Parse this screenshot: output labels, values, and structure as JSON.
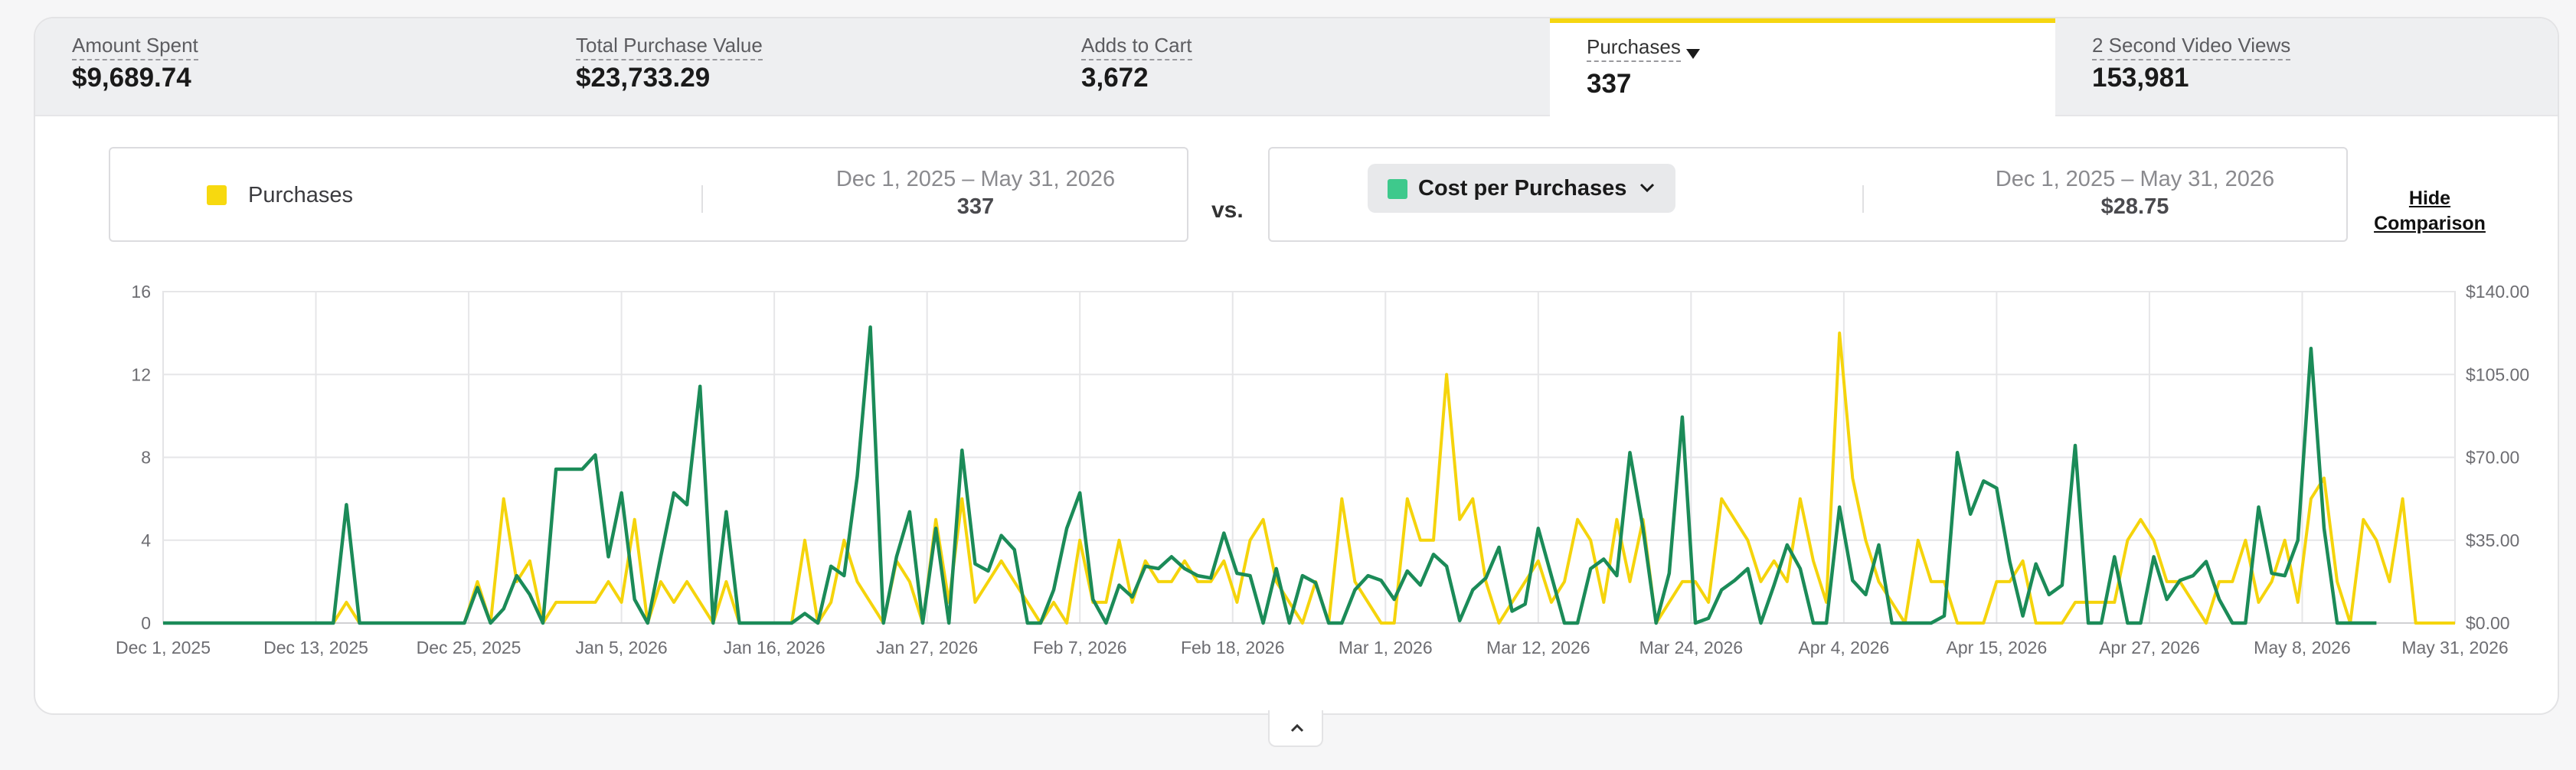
{
  "metrics": [
    {
      "label": "Amount Spent",
      "value": "$9,689.74"
    },
    {
      "label": "Total Purchase Value",
      "value": "$23,733.29"
    },
    {
      "label": "Adds to Cart",
      "value": "3,672"
    },
    {
      "label": "Purchases",
      "value": "337"
    },
    {
      "label": "2 Second Video Views",
      "value": "153,981"
    }
  ],
  "comparison": {
    "left": {
      "metric": "Purchases",
      "range": "Dec 1, 2025 – May 31, 2026",
      "value": "337",
      "color": "#f7d90f"
    },
    "vs_label": "vs.",
    "right": {
      "metric": "Cost per Purchases",
      "range": "Dec 1, 2025 – May 31, 2026",
      "value": "$28.75",
      "color": "#3ec98c"
    },
    "hide_label_1": "Hide",
    "hide_label_2": "Comparison"
  },
  "chart_data": {
    "type": "line",
    "x_range": [
      "Dec 1, 2025",
      "May 31, 2026"
    ],
    "x_tick_labels": [
      "Dec 1, 2025",
      "Dec 13, 2025",
      "Dec 25, 2025",
      "Jan 5, 2026",
      "Jan 16, 2026",
      "Jan 27, 2026",
      "Feb 7, 2026",
      "Feb 18, 2026",
      "Mar 1, 2026",
      "Mar 12, 2026",
      "Mar 24, 2026",
      "Apr 4, 2026",
      "Apr 15, 2026",
      "Apr 27, 2026",
      "May 8, 2026",
      "May 31, 2026"
    ],
    "y_left": {
      "ticks": [
        "0",
        "4",
        "8",
        "12",
        "16"
      ],
      "range": [
        0,
        16
      ]
    },
    "y_right": {
      "ticks": [
        "$0.00",
        "$35.00",
        "$70.00",
        "$105.00",
        "$140.00"
      ],
      "range": [
        0,
        140
      ]
    },
    "grid": true,
    "series": [
      {
        "name": "Purchases",
        "axis": "left",
        "color": "#f5d40c",
        "values": [
          0,
          0,
          0,
          0,
          0,
          0,
          0,
          0,
          0,
          0,
          0,
          0,
          0,
          0,
          1,
          0,
          0,
          0,
          0,
          0,
          0,
          0,
          0,
          0,
          2,
          0,
          6,
          2,
          3,
          0,
          1,
          1,
          1,
          1,
          2,
          1,
          5,
          0,
          2,
          1,
          2,
          1,
          0,
          2,
          0,
          0,
          0,
          0,
          0,
          4,
          0,
          1,
          4,
          2,
          1,
          0,
          3,
          2,
          0,
          5,
          1,
          6,
          1,
          2,
          3,
          2,
          1,
          0,
          1,
          0,
          4,
          1,
          1,
          4,
          1,
          3,
          2,
          2,
          3,
          2,
          2,
          3,
          1,
          4,
          5,
          2,
          1,
          0,
          2,
          0,
          6,
          2,
          1,
          0,
          0,
          6,
          4,
          4,
          12,
          5,
          6,
          2,
          0,
          1,
          2,
          3,
          1,
          2,
          5,
          4,
          1,
          5,
          2,
          5,
          0,
          1,
          2,
          2,
          1,
          6,
          5,
          4,
          2,
          3,
          2,
          6,
          3,
          1,
          14,
          7,
          4,
          2,
          1,
          0,
          4,
          2,
          2,
          0,
          0,
          0,
          2,
          2,
          3,
          0,
          0,
          0,
          1,
          1,
          1,
          1,
          4,
          5,
          4,
          2,
          2,
          1,
          0,
          2,
          2,
          4,
          1,
          2,
          4,
          1,
          6,
          7,
          2,
          0,
          5,
          4,
          2,
          6,
          0,
          0,
          0,
          0
        ]
      },
      {
        "name": "Cost per Purchases",
        "axis": "right",
        "color": "#1b8b58",
        "values": [
          0,
          0,
          0,
          0,
          0,
          0,
          0,
          0,
          0,
          0,
          0,
          0,
          0,
          0,
          50,
          0,
          0,
          0,
          0,
          0,
          0,
          0,
          0,
          0,
          15,
          0,
          6,
          20,
          12,
          0,
          65,
          65,
          65,
          71,
          28,
          55,
          10,
          0,
          28,
          55,
          50,
          100,
          0,
          47,
          0,
          0,
          0,
          0,
          0,
          4,
          0,
          24,
          20,
          62,
          125,
          0,
          28,
          47,
          0,
          40,
          0,
          73,
          25,
          22,
          37,
          31,
          0,
          0,
          14,
          40,
          55,
          10,
          0,
          16,
          11,
          24,
          23,
          28,
          23,
          20,
          19,
          38,
          21,
          20,
          0,
          23,
          0,
          20,
          17,
          0,
          0,
          14,
          20,
          18,
          10,
          22,
          16,
          29,
          24,
          1,
          14,
          19,
          32,
          5,
          8,
          40,
          20,
          0,
          0,
          23,
          27,
          20,
          72,
          40,
          0,
          21,
          87,
          0,
          2,
          14,
          18,
          23,
          0,
          16,
          33,
          23,
          0,
          0,
          49,
          18,
          12,
          33,
          0,
          0,
          0,
          0,
          3,
          72,
          46,
          60,
          57,
          26,
          3,
          25,
          12,
          16,
          75,
          0,
          0,
          28,
          0,
          0,
          28,
          10,
          18,
          20,
          26,
          10,
          0,
          0,
          49,
          21,
          20,
          35,
          116,
          40,
          0,
          0,
          0,
          0
        ]
      }
    ]
  }
}
